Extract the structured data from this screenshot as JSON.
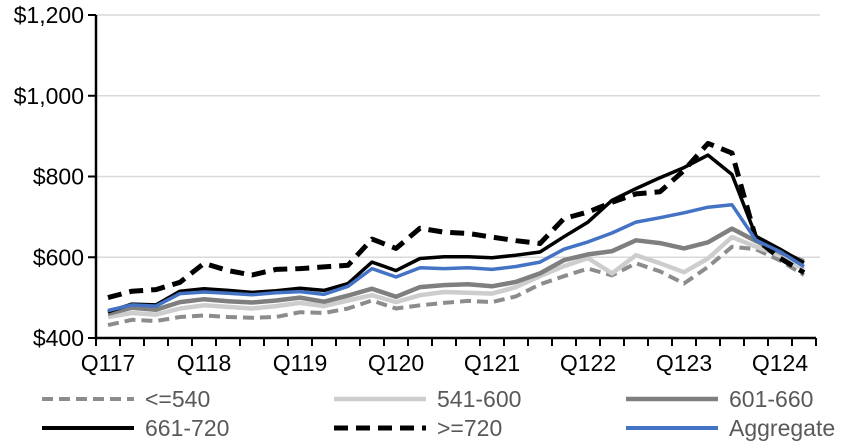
{
  "chart_data": {
    "type": "line",
    "title": "",
    "xlabel": "",
    "ylabel": "",
    "y_axis": {
      "min": 400,
      "max": 1200,
      "step": 200,
      "tick_labels": [
        "$400",
        "$600",
        "$800",
        "$1,000",
        "$1,200"
      ],
      "grid": true
    },
    "x_axis": {
      "categories": [
        "Q117",
        "Q217",
        "Q317",
        "Q417",
        "Q118",
        "Q218",
        "Q318",
        "Q418",
        "Q119",
        "Q219",
        "Q319",
        "Q419",
        "Q120",
        "Q220",
        "Q320",
        "Q420",
        "Q121",
        "Q221",
        "Q321",
        "Q421",
        "Q122",
        "Q222",
        "Q322",
        "Q422",
        "Q123",
        "Q223",
        "Q323",
        "Q423",
        "Q124",
        "Q224"
      ],
      "shown_tick_labels": [
        "Q117",
        "Q118",
        "Q119",
        "Q120",
        "Q121",
        "Q122",
        "Q123",
        "Q124"
      ],
      "label_every_n": 4
    },
    "series": [
      {
        "name": "<=540",
        "color": "#8C8C8C",
        "dash": "11 6",
        "width": 4,
        "values": [
          432,
          445,
          442,
          452,
          456,
          452,
          450,
          452,
          464,
          462,
          473,
          493,
          473,
          481,
          487,
          492,
          489,
          503,
          533,
          553,
          572,
          555,
          585,
          565,
          535,
          576,
          626,
          620,
          592,
          556
        ]
      },
      {
        "name": "541-600",
        "color": "#CDCDCD",
        "dash": null,
        "width": 4.5,
        "values": [
          452,
          462,
          458,
          473,
          481,
          477,
          473,
          479,
          487,
          479,
          493,
          506,
          489,
          506,
          514,
          512,
          510,
          526,
          553,
          578,
          598,
          560,
          605,
          585,
          563,
          597,
          650,
          626,
          605,
          570
        ]
      },
      {
        "name": "601-660",
        "color": "#7F7F7F",
        "dash": null,
        "width": 4.5,
        "values": [
          460,
          475,
          470,
          489,
          496,
          491,
          488,
          493,
          500,
          490,
          505,
          522,
          502,
          526,
          531,
          533,
          528,
          539,
          560,
          593,
          607,
          615,
          642,
          635,
          622,
          637,
          671,
          640,
          612,
          590
        ]
      },
      {
        "name": "661-720",
        "color": "#000000",
        "dash": null,
        "width": 3.5,
        "values": [
          465,
          484,
          482,
          516,
          522,
          518,
          513,
          517,
          523,
          518,
          535,
          588,
          567,
          597,
          601,
          601,
          599,
          605,
          613,
          651,
          687,
          741,
          770,
          797,
          822,
          853,
          805,
          652,
          620,
          586
        ]
      },
      {
        "name": ">=720",
        "color": "#000000",
        "dash": "14 8",
        "width": 5,
        "values": [
          500,
          516,
          520,
          538,
          585,
          567,
          556,
          570,
          572,
          576,
          580,
          645,
          622,
          672,
          662,
          659,
          650,
          641,
          634,
          696,
          712,
          736,
          757,
          762,
          815,
          882,
          858,
          645,
          598,
          562
        ]
      },
      {
        "name": "Aggregate",
        "color": "#4472C4",
        "dash": null,
        "width": 3.5,
        "values": [
          468,
          482,
          479,
          510,
          514,
          511,
          507,
          512,
          515,
          508,
          528,
          572,
          551,
          574,
          572,
          574,
          570,
          577,
          588,
          620,
          638,
          660,
          687,
          698,
          710,
          724,
          730,
          642,
          614,
          577
        ]
      }
    ],
    "legend": {
      "position": "bottom",
      "rows": [
        [
          "<=540",
          "541-600",
          "601-660"
        ],
        [
          "661-720",
          ">=720",
          "Aggregate"
        ]
      ]
    },
    "colors": {
      "gridline": "#D9D9D9",
      "axis": "#000000",
      "legend_text": "#595959",
      "accent_blue": "#4472C4"
    }
  }
}
